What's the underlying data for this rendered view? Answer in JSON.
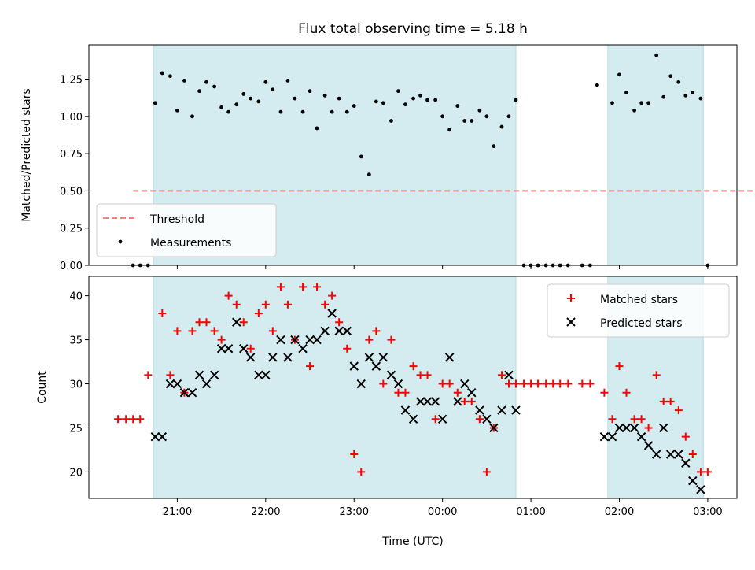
{
  "chart_data": [
    {
      "panel": "top",
      "type": "scatter",
      "title": "Flux total observing time = 5.18 h",
      "xlabel": "",
      "ylabel": "Matched/Predicted stars",
      "ylim": [
        0.0,
        1.48
      ],
      "yticks": [
        "0.00",
        "0.25",
        "0.50",
        "0.75",
        "1.00",
        "1.25"
      ],
      "grid": false,
      "legend_position": "bottom-left",
      "threshold": {
        "name": "Threshold",
        "value": 0.5,
        "from": 20.5,
        "to": 29.0,
        "color": "#f08080"
      },
      "shaded_ranges": [
        [
          20.73,
          24.83
        ],
        [
          25.87,
          26.95
        ]
      ],
      "shade_color": "#d4ebf0",
      "series": [
        {
          "name": "Measurements",
          "color": "#000000",
          "x": [
            20.5,
            20.58,
            20.67,
            20.75,
            20.83,
            20.92,
            21.0,
            21.08,
            21.17,
            21.25,
            21.33,
            21.42,
            21.5,
            21.58,
            21.67,
            21.75,
            21.83,
            21.92,
            22.0,
            22.08,
            22.17,
            22.25,
            22.33,
            22.42,
            22.5,
            22.58,
            22.67,
            22.75,
            22.83,
            22.92,
            23.0,
            23.08,
            23.17,
            23.25,
            23.33,
            23.42,
            23.5,
            23.58,
            23.67,
            23.75,
            23.83,
            23.92,
            24.0,
            24.08,
            24.17,
            24.25,
            24.33,
            24.42,
            24.5,
            24.58,
            24.67,
            24.75,
            24.83,
            24.92,
            25.0,
            25.08,
            25.17,
            25.25,
            25.33,
            25.42,
            25.58,
            25.67,
            25.75,
            25.92,
            26.0,
            26.08,
            26.17,
            26.25,
            26.33,
            26.42,
            26.5,
            26.58,
            26.67,
            26.75,
            26.83,
            26.92,
            27.0
          ],
          "y": [
            0.0,
            0.0,
            0.0,
            1.09,
            1.29,
            1.27,
            1.04,
            1.24,
            1.0,
            1.17,
            1.23,
            1.2,
            1.06,
            1.03,
            1.08,
            1.15,
            1.12,
            1.1,
            1.23,
            1.18,
            1.03,
            1.24,
            1.12,
            1.03,
            1.17,
            0.92,
            1.14,
            1.03,
            1.12,
            1.03,
            1.07,
            0.73,
            0.61,
            1.1,
            1.09,
            0.97,
            1.17,
            1.08,
            1.12,
            1.14,
            1.11,
            1.11,
            1.0,
            0.91,
            1.07,
            0.97,
            0.97,
            1.04,
            1.0,
            0.8,
            0.93,
            1.0,
            1.11,
            0.0,
            0.0,
            0.0,
            0.0,
            0.0,
            0.0,
            0.0,
            0.0,
            0.0,
            1.21,
            1.09,
            1.28,
            1.16,
            1.04,
            1.09,
            1.09,
            1.41,
            1.13,
            1.27,
            1.23,
            1.14,
            1.16,
            1.12,
            0.0
          ]
        }
      ]
    },
    {
      "panel": "bottom",
      "type": "scatter",
      "title": "",
      "xlabel": "Time (UTC)",
      "ylabel": "Count",
      "xlim": [
        20.0,
        27.33
      ],
      "ylim": [
        17,
        42.2
      ],
      "xticks": [
        {
          "value": 21,
          "label": "21:00"
        },
        {
          "value": 22,
          "label": "22:00"
        },
        {
          "value": 23,
          "label": "23:00"
        },
        {
          "value": 24,
          "label": "00:00"
        },
        {
          "value": 25,
          "label": "01:00"
        },
        {
          "value": 26,
          "label": "02:00"
        },
        {
          "value": 27,
          "label": "03:00"
        }
      ],
      "yticks": [
        "20",
        "25",
        "30",
        "35",
        "40"
      ],
      "grid": false,
      "legend_position": "top-right",
      "shaded_ranges": [
        [
          20.73,
          24.83
        ],
        [
          25.87,
          26.95
        ]
      ],
      "shade_color": "#d4ebf0",
      "series": [
        {
          "name": "Matched stars",
          "marker": "plus",
          "color": "#ff0000",
          "x": [
            20.33,
            20.42,
            20.5,
            20.58,
            20.67,
            20.83,
            20.92,
            21.0,
            21.08,
            21.17,
            21.25,
            21.33,
            21.42,
            21.5,
            21.58,
            21.67,
            21.75,
            21.83,
            21.92,
            22.0,
            22.08,
            22.17,
            22.25,
            22.33,
            22.42,
            22.5,
            22.58,
            22.67,
            22.75,
            22.83,
            22.92,
            23.0,
            23.08,
            23.17,
            23.25,
            23.33,
            23.42,
            23.5,
            23.58,
            23.67,
            23.75,
            23.83,
            23.92,
            24.0,
            24.08,
            24.17,
            24.25,
            24.33,
            24.42,
            24.5,
            24.58,
            24.67,
            24.75,
            24.83,
            24.92,
            25.0,
            25.08,
            25.17,
            25.25,
            25.33,
            25.42,
            25.58,
            25.67,
            25.83,
            25.92,
            26.0,
            26.08,
            26.17,
            26.25,
            26.33,
            26.42,
            26.5,
            26.58,
            26.67,
            26.75,
            26.83,
            26.92,
            27.0
          ],
          "y": [
            26,
            26,
            26,
            26,
            31,
            38,
            31,
            36,
            29,
            36,
            37,
            37,
            36,
            35,
            40,
            39,
            37,
            34,
            38,
            39,
            36,
            41,
            39,
            35,
            41,
            32,
            41,
            39,
            40,
            37,
            34,
            22,
            20,
            35,
            36,
            30,
            35,
            29,
            29,
            32,
            31,
            31,
            26,
            30,
            30,
            29,
            28,
            28,
            26,
            20,
            25,
            31,
            30,
            30,
            30,
            30,
            30,
            30,
            30,
            30,
            30,
            30,
            30,
            29,
            26,
            32,
            29,
            26,
            26,
            25,
            31,
            28,
            28,
            27,
            24,
            22,
            20,
            20
          ]
        },
        {
          "name": "Predicted stars",
          "marker": "x",
          "color": "#000000",
          "x": [
            20.75,
            20.83,
            20.92,
            21.0,
            21.08,
            21.17,
            21.25,
            21.33,
            21.42,
            21.5,
            21.58,
            21.67,
            21.75,
            21.83,
            21.92,
            22.0,
            22.08,
            22.17,
            22.25,
            22.33,
            22.42,
            22.5,
            22.58,
            22.67,
            22.75,
            22.83,
            22.92,
            23.0,
            23.08,
            23.17,
            23.25,
            23.33,
            23.42,
            23.5,
            23.58,
            23.67,
            23.75,
            23.83,
            23.92,
            24.0,
            24.08,
            24.17,
            24.25,
            24.33,
            24.42,
            24.5,
            24.58,
            24.67,
            24.75,
            24.83,
            25.83,
            25.92,
            26.0,
            26.08,
            26.17,
            26.25,
            26.33,
            26.42,
            26.5,
            26.58,
            26.67,
            26.75,
            26.83,
            26.92
          ],
          "y": [
            24,
            24,
            30,
            30,
            29,
            29,
            31,
            30,
            31,
            34,
            34,
            37,
            34,
            33,
            31,
            31,
            33,
            35,
            33,
            35,
            34,
            35,
            35,
            36,
            38,
            36,
            36,
            32,
            30,
            33,
            32,
            33,
            31,
            30,
            27,
            26,
            28,
            28,
            28,
            26,
            33,
            28,
            30,
            29,
            27,
            26,
            25,
            27,
            31,
            27,
            24,
            24,
            25,
            25,
            25,
            24,
            23,
            22,
            25,
            22,
            22,
            21,
            19,
            18
          ]
        }
      ]
    }
  ]
}
